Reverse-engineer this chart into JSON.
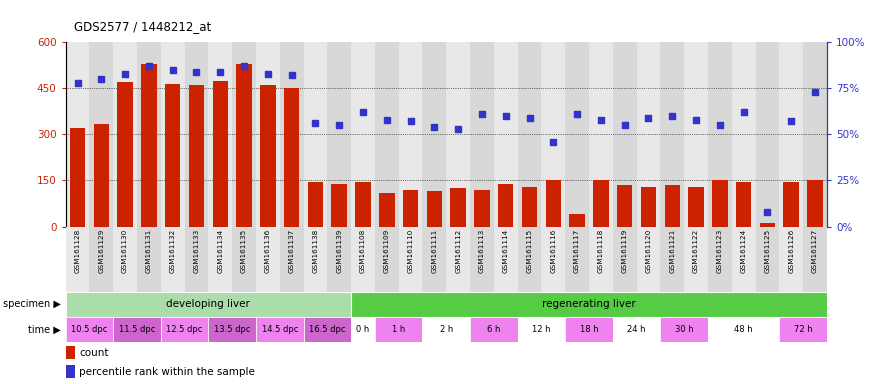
{
  "title": "GDS2577 / 1448212_at",
  "samples": [
    "GSM161128",
    "GSM161129",
    "GSM161130",
    "GSM161131",
    "GSM161132",
    "GSM161133",
    "GSM161134",
    "GSM161135",
    "GSM161136",
    "GSM161137",
    "GSM161138",
    "GSM161139",
    "GSM161108",
    "GSM161109",
    "GSM161110",
    "GSM161111",
    "GSM161112",
    "GSM161113",
    "GSM161114",
    "GSM161115",
    "GSM161116",
    "GSM161117",
    "GSM161118",
    "GSM161119",
    "GSM161120",
    "GSM161121",
    "GSM161122",
    "GSM161123",
    "GSM161124",
    "GSM161125",
    "GSM161126",
    "GSM161127"
  ],
  "counts": [
    320,
    335,
    470,
    530,
    465,
    460,
    475,
    530,
    460,
    450,
    145,
    140,
    145,
    110,
    120,
    115,
    125,
    120,
    140,
    130,
    150,
    40,
    150,
    135,
    130,
    135,
    130,
    150,
    145,
    10,
    145,
    150
  ],
  "percentiles": [
    78,
    80,
    83,
    87,
    85,
    84,
    84,
    87,
    83,
    82,
    56,
    55,
    62,
    58,
    57,
    54,
    53,
    61,
    60,
    59,
    46,
    61,
    58,
    55,
    59,
    60,
    58,
    55,
    62,
    8,
    57,
    73
  ],
  "specimen_groups": [
    {
      "label": "developing liver",
      "start": 0,
      "end": 12,
      "color": "#aaddaa"
    },
    {
      "label": "regenerating liver",
      "start": 12,
      "end": 32,
      "color": "#55cc44"
    }
  ],
  "time_groups": [
    {
      "label": "10.5 dpc",
      "start": 0,
      "end": 2,
      "color": "#ee82ee"
    },
    {
      "label": "11.5 dpc",
      "start": 2,
      "end": 4,
      "color": "#cc66cc"
    },
    {
      "label": "12.5 dpc",
      "start": 4,
      "end": 6,
      "color": "#ee82ee"
    },
    {
      "label": "13.5 dpc",
      "start": 6,
      "end": 8,
      "color": "#cc66cc"
    },
    {
      "label": "14.5 dpc",
      "start": 8,
      "end": 10,
      "color": "#ee82ee"
    },
    {
      "label": "16.5 dpc",
      "start": 10,
      "end": 12,
      "color": "#cc66cc"
    },
    {
      "label": "0 h",
      "start": 12,
      "end": 13,
      "color": "#ffffff"
    },
    {
      "label": "1 h",
      "start": 13,
      "end": 15,
      "color": "#ee82ee"
    },
    {
      "label": "2 h",
      "start": 15,
      "end": 17,
      "color": "#ffffff"
    },
    {
      "label": "6 h",
      "start": 17,
      "end": 19,
      "color": "#ee82ee"
    },
    {
      "label": "12 h",
      "start": 19,
      "end": 21,
      "color": "#ffffff"
    },
    {
      "label": "18 h",
      "start": 21,
      "end": 23,
      "color": "#ee82ee"
    },
    {
      "label": "24 h",
      "start": 23,
      "end": 25,
      "color": "#ffffff"
    },
    {
      "label": "30 h",
      "start": 25,
      "end": 27,
      "color": "#ee82ee"
    },
    {
      "label": "48 h",
      "start": 27,
      "end": 30,
      "color": "#ffffff"
    },
    {
      "label": "72 h",
      "start": 30,
      "end": 32,
      "color": "#ee82ee"
    }
  ],
  "bar_color": "#cc2200",
  "dot_color": "#3333cc",
  "left_ylim": [
    0,
    600
  ],
  "right_ylim": [
    0,
    100
  ],
  "left_yticks": [
    0,
    150,
    300,
    450,
    600
  ],
  "right_yticks": [
    0,
    25,
    50,
    75,
    100
  ],
  "left_yticklabels": [
    "0",
    "150",
    "300",
    "450",
    "600"
  ],
  "right_yticklabels": [
    "0%",
    "25%",
    "50%",
    "75%",
    "100%"
  ],
  "background_color": "#ffffff",
  "grid_color": "#000000"
}
